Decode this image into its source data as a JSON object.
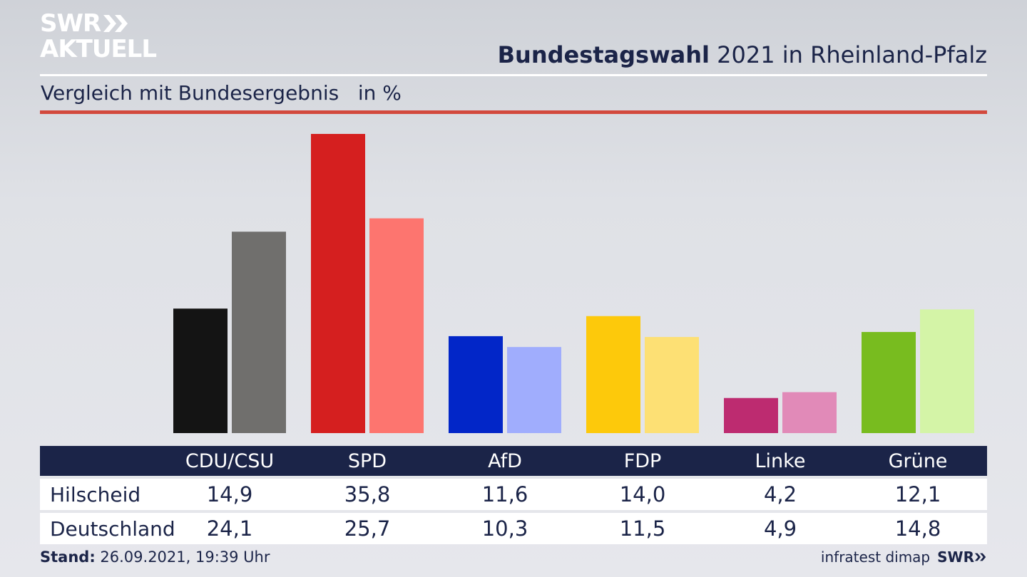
{
  "brand": {
    "line1": "SWR",
    "line2": "AKTUELL"
  },
  "header": {
    "title_bold": "Bundestagswahl",
    "title_rest": " 2021 in Rheinland-Pfalz",
    "subtitle": "Vergleich mit Bundesergebnis   in %"
  },
  "colors": {
    "navy": "#1b2448",
    "accent_red": "#d2493d"
  },
  "chart_data": {
    "type": "bar",
    "categories": [
      "CDU/CSU",
      "SPD",
      "AfD",
      "FDP",
      "Linke",
      "Grüne"
    ],
    "series": [
      {
        "name": "Hilscheid",
        "values": [
          14.9,
          35.8,
          11.6,
          14.0,
          4.2,
          12.1
        ],
        "colors": [
          "#141414",
          "#d51f1f",
          "#0226c8",
          "#fdc90b",
          "#bd2b70",
          "#78bc1f"
        ]
      },
      {
        "name": "Deutschland",
        "values": [
          24.1,
          25.7,
          10.3,
          11.5,
          4.9,
          14.8
        ],
        "colors": [
          "#706f6d",
          "#fd756f",
          "#a0adfd",
          "#fde074",
          "#e18ab8",
          "#d4f4a7"
        ]
      }
    ],
    "ylim": [
      0,
      36
    ]
  },
  "footer": {
    "stand_label": "Stand:",
    "stand_value": " 26.09.2021, 19:39 Uhr",
    "source": "infratest dimap",
    "brand": "SWR"
  }
}
